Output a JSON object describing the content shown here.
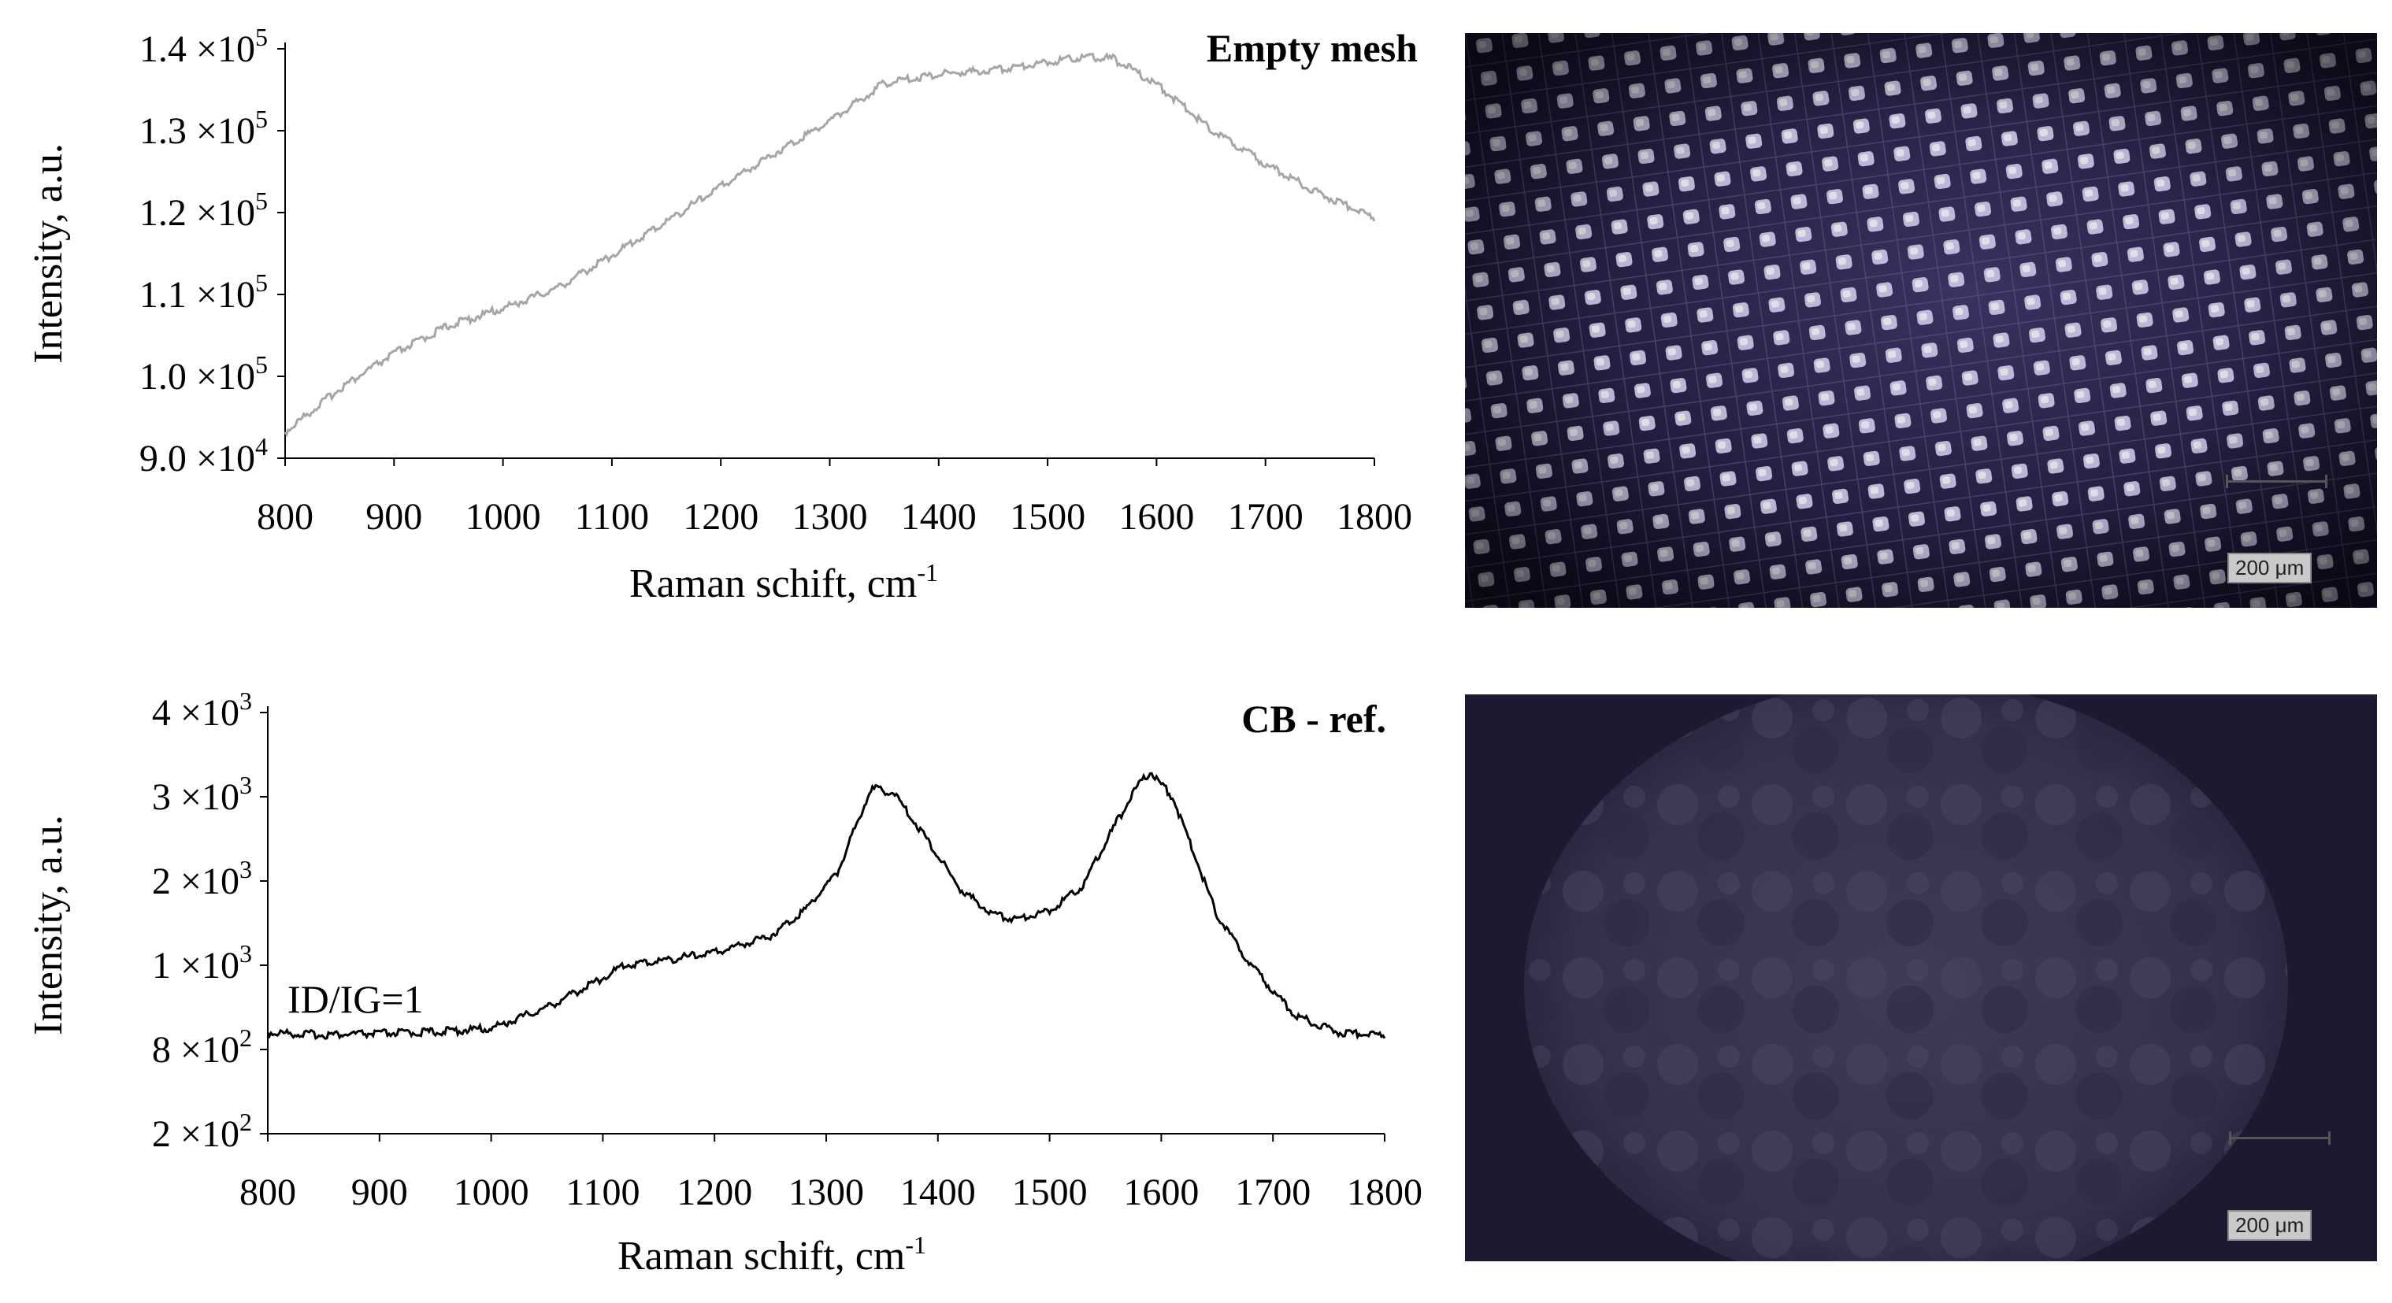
{
  "chart_data": [
    {
      "type": "line",
      "title": "Empty mesh",
      "xlabel": "Raman schift, cm",
      "xlabel_sup": "-1",
      "ylabel": "Intensity, a.u.",
      "xlim": [
        800,
        1800
      ],
      "ylim": [
        90000,
        140000
      ],
      "xticks": [
        "800",
        "900",
        "1000",
        "1100",
        "1200",
        "1300",
        "1400",
        "1500",
        "1600",
        "1700",
        "1800"
      ],
      "yticks": [
        {
          "value": 90000,
          "mantissa": "9.0 ×10",
          "exp": "4"
        },
        {
          "value": 100000,
          "mantissa": "1.0 ×10",
          "exp": "5"
        },
        {
          "value": 110000,
          "mantissa": "1.1 ×10",
          "exp": "5"
        },
        {
          "value": 120000,
          "mantissa": "1.2 ×10",
          "exp": "5"
        },
        {
          "value": 130000,
          "mantissa": "1.3 ×10",
          "exp": "5"
        },
        {
          "value": 140000,
          "mantissa": "1.4 ×10",
          "exp": "5"
        }
      ],
      "series": [
        {
          "color": "#a6a6a6",
          "x": [
            800,
            850,
            900,
            950,
            1000,
            1050,
            1100,
            1150,
            1200,
            1250,
            1300,
            1350,
            1400,
            1450,
            1500,
            1530,
            1560,
            1600,
            1650,
            1700,
            1750,
            1800
          ],
          "y": [
            93200,
            98500,
            102800,
            106200,
            108300,
            110800,
            114800,
            118900,
            123200,
            127300,
            131200,
            135800,
            136900,
            137400,
            138400,
            139000,
            138800,
            135700,
            130200,
            125900,
            122300,
            119400
          ]
        }
      ]
    },
    {
      "type": "line",
      "title": "CB - ref.",
      "xlabel": "Raman schift, cm",
      "xlabel_sup": "-1",
      "ylabel": "Intensity, a.u.",
      "xlim": [
        800,
        1800
      ],
      "ylim": [
        200,
        4000
      ],
      "annotation": "ID/IG=1",
      "xticks": [
        "800",
        "900",
        "1000",
        "1100",
        "1200",
        "1300",
        "1400",
        "1500",
        "1600",
        "1700",
        "1800"
      ],
      "yticks": [
        {
          "value": 200,
          "mantissa": "2 ×10",
          "exp": "2"
        },
        {
          "value": 800,
          "mantissa": "8 ×10",
          "exp": "2"
        },
        {
          "value": 1000,
          "mantissa": "1 ×10",
          "exp": "3"
        },
        {
          "value": 2000,
          "mantissa": "2 ×10",
          "exp": "3"
        },
        {
          "value": 3000,
          "mantissa": "3 ×10",
          "exp": "3"
        },
        {
          "value": 4000,
          "mantissa": "4 ×10",
          "exp": "3"
        }
      ],
      "series": [
        {
          "color": "#000000",
          "x": [
            800,
            850,
            900,
            950,
            1000,
            1050,
            1100,
            1150,
            1200,
            1250,
            1280,
            1310,
            1340,
            1360,
            1390,
            1420,
            1450,
            1470,
            1500,
            1530,
            1560,
            1580,
            1590,
            1610,
            1630,
            1650,
            1680,
            1720,
            1760,
            1800
          ],
          "y": [
            840,
            835,
            838,
            842,
            850,
            900,
            970,
            1050,
            1150,
            1350,
            1650,
            2100,
            3100,
            3050,
            2500,
            1900,
            1600,
            1550,
            1650,
            1950,
            2700,
            3150,
            3300,
            3000,
            2300,
            1600,
            1000,
            880,
            840,
            835
          ]
        }
      ]
    }
  ],
  "images": [
    {
      "scale_label": "200 μm"
    },
    {
      "scale_label": "200 μm"
    }
  ]
}
